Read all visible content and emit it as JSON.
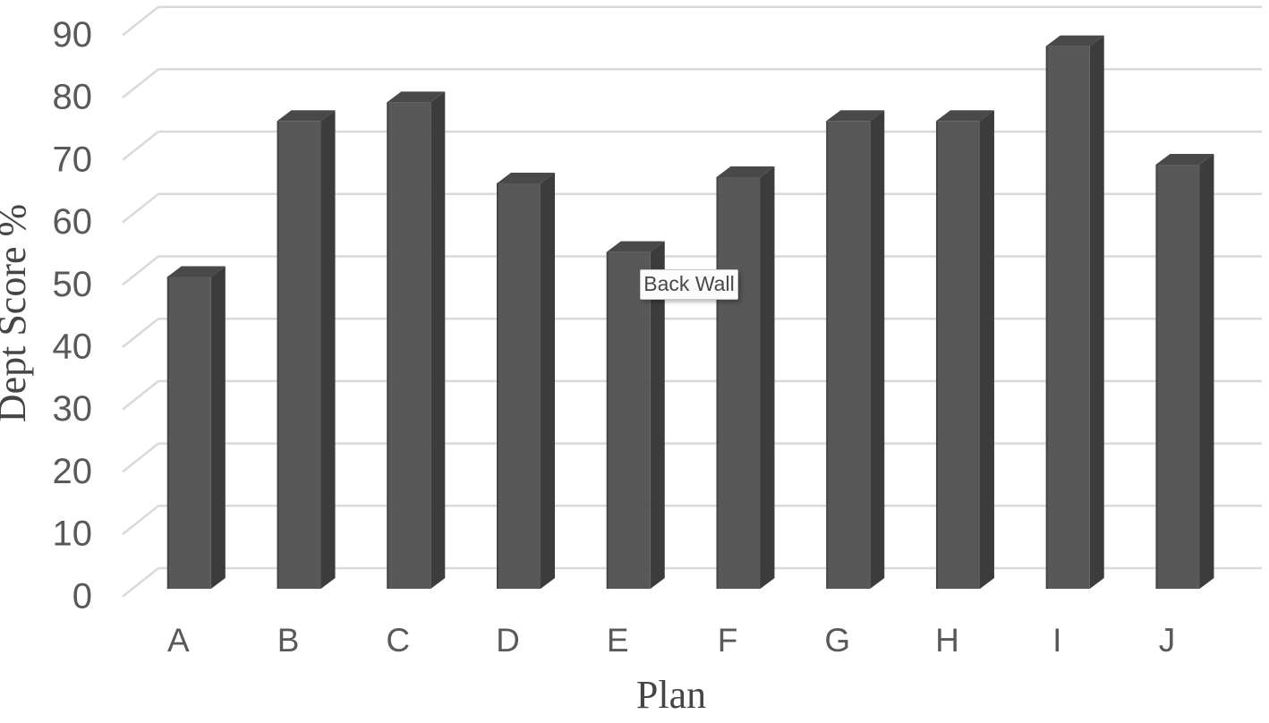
{
  "chart_data": {
    "type": "bar",
    "variant": "3d-clustered-column",
    "title": "",
    "xlabel": "Plan",
    "ylabel": "Dept Score %",
    "categories": [
      "A",
      "B",
      "C",
      "D",
      "E",
      "F",
      "G",
      "H",
      "I",
      "J"
    ],
    "values": [
      50,
      75,
      78,
      65,
      54,
      66,
      75,
      75,
      87,
      68
    ],
    "ylim": [
      0,
      90
    ],
    "ytick_step": 10,
    "yticks": [
      0,
      10,
      20,
      30,
      40,
      50,
      60,
      70,
      80,
      90
    ],
    "grid": true,
    "legend": false
  },
  "tooltip": {
    "label": "Back Wall"
  },
  "colors": {
    "background": "#ffffff",
    "bar_front": "#585858",
    "bar_side": "#3c3c3c",
    "bar_top": "#494949",
    "bar_edge": "#3a3a3a",
    "gridline": "#d9d9d9",
    "tick_text": "#595959",
    "axis_title_text": "#454545",
    "tooltip_bg": "#fbfbfb",
    "tooltip_border": "#c8c8c8",
    "tooltip_text": "#46484d"
  }
}
